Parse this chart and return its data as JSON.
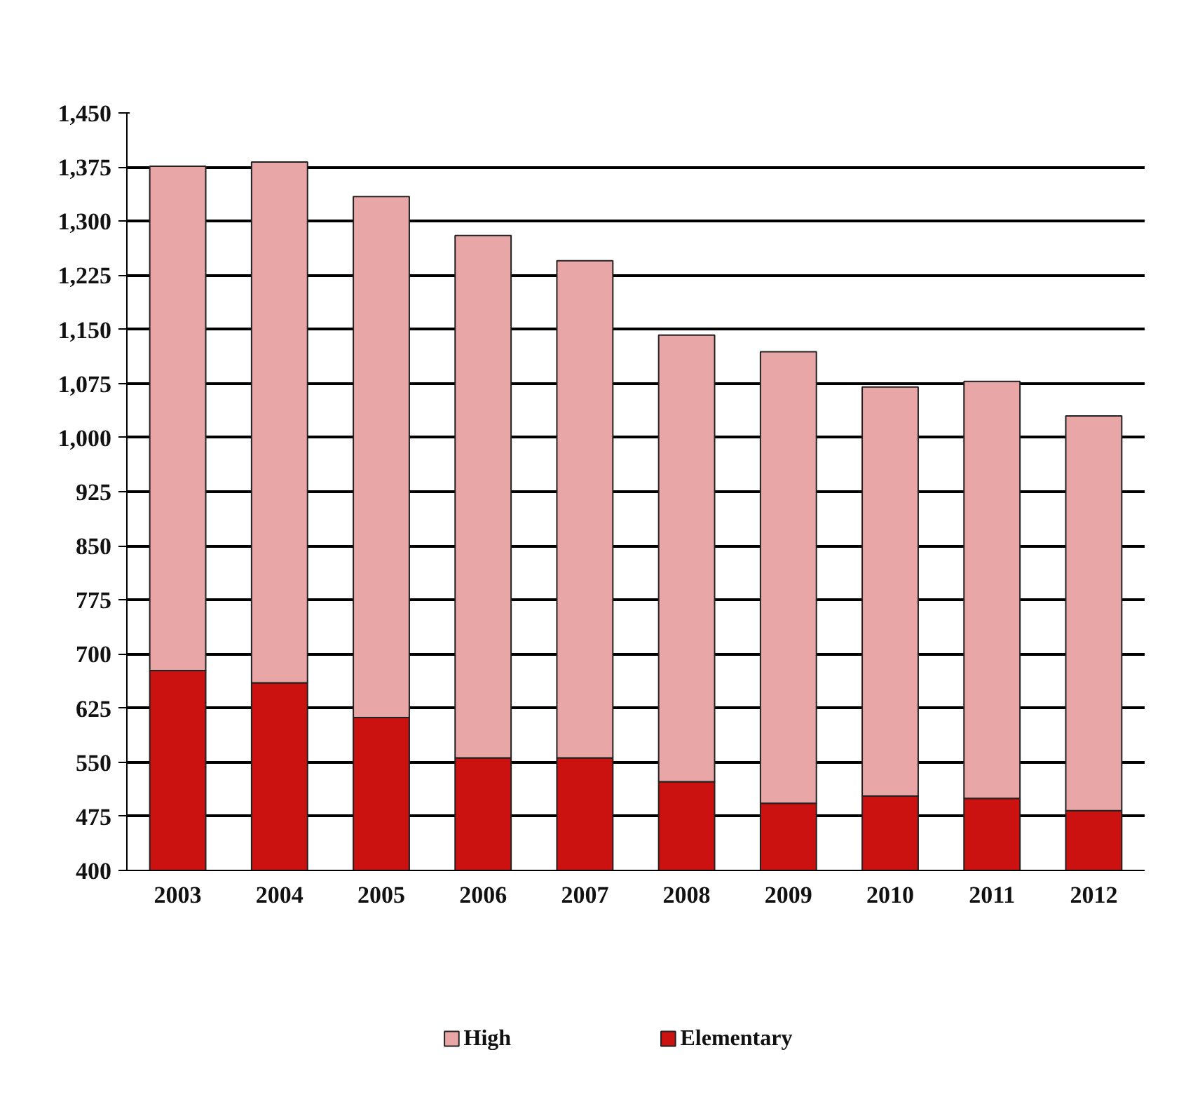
{
  "chart_data": {
    "type": "bar",
    "stacked": true,
    "categories": [
      "2003",
      "2004",
      "2005",
      "2006",
      "2007",
      "2008",
      "2009",
      "2010",
      "2011",
      "2012"
    ],
    "series": [
      {
        "name": "Elementary",
        "color": "#cc1111",
        "values": [
          677,
          660,
          612,
          556,
          556,
          523,
          493,
          503,
          500,
          483
        ]
      },
      {
        "name": "High",
        "color": "#e8a6a6",
        "values": [
          699,
          722,
          722,
          724,
          689,
          619,
          626,
          567,
          578,
          547
        ]
      }
    ],
    "ylim": [
      400,
      1450
    ],
    "yticks": [
      {
        "value": 400,
        "label": "400"
      },
      {
        "value": 475,
        "label": "475"
      },
      {
        "value": 550,
        "label": "550"
      },
      {
        "value": 625,
        "label": "625"
      },
      {
        "value": 700,
        "label": "700"
      },
      {
        "value": 775,
        "label": "775"
      },
      {
        "value": 850,
        "label": "850"
      },
      {
        "value": 925,
        "label": "925"
      },
      {
        "value": 1000,
        "label": "1,000"
      },
      {
        "value": 1075,
        "label": "1,075"
      },
      {
        "value": 1150,
        "label": "1,150"
      },
      {
        "value": 1225,
        "label": "1,225"
      },
      {
        "value": 1300,
        "label": "1,300"
      },
      {
        "value": 1375,
        "label": "1,375"
      },
      {
        "value": 1450,
        "label": "1,450"
      }
    ],
    "grid": "y",
    "legend": "bottom"
  }
}
